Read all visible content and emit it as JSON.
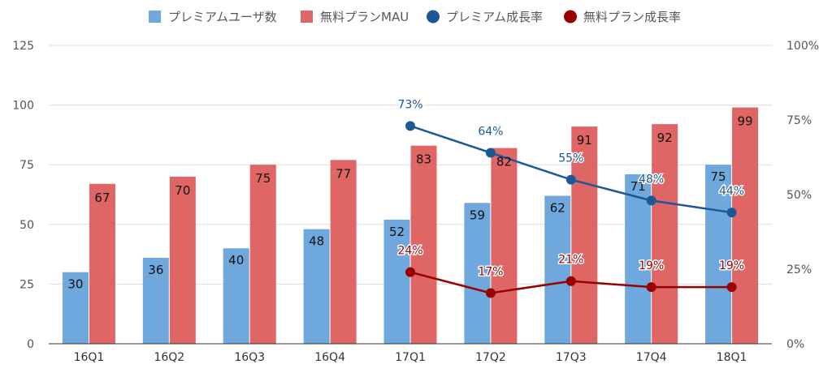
{
  "chart_data": {
    "type": "bar",
    "title": "",
    "xlabel": "",
    "ylabel": "",
    "categories": [
      "16Q1",
      "16Q2",
      "16Q3",
      "16Q4",
      "17Q1",
      "17Q2",
      "17Q3",
      "17Q4",
      "18Q1"
    ],
    "ylim": [
      0,
      125
    ],
    "yticks": [
      0,
      25,
      50,
      75,
      100,
      125
    ],
    "y2lim": [
      0,
      100
    ],
    "y2ticks": [
      "0%",
      "25%",
      "50%",
      "75%",
      "100%"
    ],
    "grid": true,
    "legend_position": "top-center",
    "series": [
      {
        "name": "プレミアムユーザ数",
        "type": "bar",
        "axis": "left",
        "color": "#6fa8dc",
        "values": [
          30,
          36,
          40,
          48,
          52,
          59,
          62,
          71,
          75
        ]
      },
      {
        "name": "無料プランMAU",
        "type": "bar",
        "axis": "left",
        "color": "#e06666",
        "values": [
          67,
          70,
          75,
          77,
          83,
          82,
          91,
          92,
          99
        ]
      },
      {
        "name": "プレミアム成長率",
        "type": "line",
        "axis": "right",
        "color": "#1c5896",
        "values": [
          null,
          null,
          null,
          null,
          73,
          64,
          55,
          48,
          44
        ],
        "labels": [
          "",
          "",
          "",
          "",
          "73%",
          "64%",
          "55%",
          "48%",
          "44%"
        ]
      },
      {
        "name": "無料プラン成長率",
        "type": "line",
        "axis": "right",
        "color": "#990000",
        "values": [
          null,
          null,
          null,
          null,
          24,
          17,
          21,
          19,
          19
        ],
        "labels": [
          "",
          "",
          "",
          "",
          "24%",
          "17%",
          "21%",
          "19%",
          "19%"
        ]
      }
    ]
  }
}
